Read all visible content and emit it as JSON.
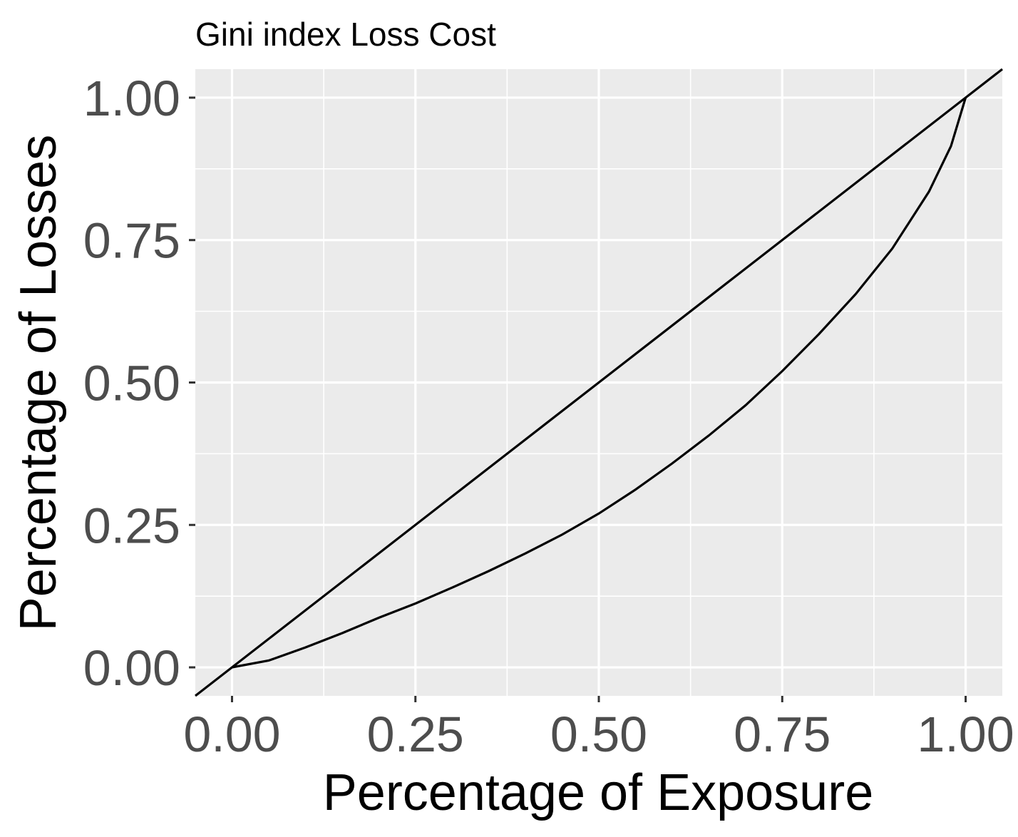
{
  "chart_data": {
    "type": "line",
    "title": "Gini index Loss Cost",
    "xlabel": "Percentage of Exposure",
    "ylabel": "Percentage of Losses",
    "xlim": [
      -0.05,
      1.05
    ],
    "ylim": [
      -0.05,
      1.05
    ],
    "x_ticks": [
      "0.00",
      "0.25",
      "0.50",
      "0.75",
      "1.00"
    ],
    "y_ticks": [
      "0.00",
      "0.25",
      "0.50",
      "0.75",
      "1.00"
    ],
    "grid": true,
    "panel_background": "#ebebeb",
    "series": [
      {
        "kind": "reference-line",
        "slope": 1,
        "intercept": 0,
        "color": "#000000"
      },
      {
        "kind": "lorenz-curve",
        "color": "#000000",
        "x": [
          0,
          0.05,
          0.1,
          0.15,
          0.2,
          0.25,
          0.3,
          0.35,
          0.4,
          0.45,
          0.5,
          0.55,
          0.6,
          0.65,
          0.7,
          0.75,
          0.8,
          0.85,
          0.9,
          0.95,
          0.98,
          1.0
        ],
        "y": [
          0,
          0.012,
          0.035,
          0.06,
          0.087,
          0.112,
          0.14,
          0.169,
          0.2,
          0.233,
          0.27,
          0.312,
          0.358,
          0.407,
          0.46,
          0.52,
          0.585,
          0.655,
          0.735,
          0.835,
          0.915,
          1.0
        ]
      }
    ]
  }
}
